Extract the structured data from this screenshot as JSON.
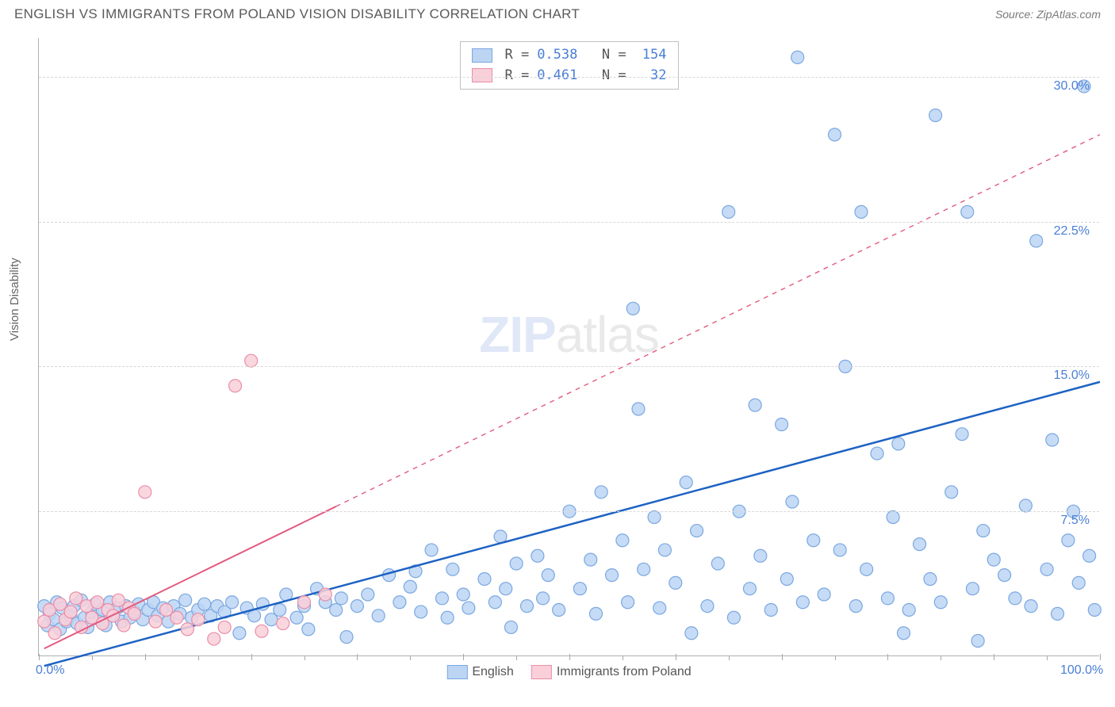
{
  "header": {
    "title": "ENGLISH VS IMMIGRANTS FROM POLAND VISION DISABILITY CORRELATION CHART",
    "source": "Source: ZipAtlas.com"
  },
  "ylabel": "Vision Disability",
  "watermark_zip": "ZIP",
  "watermark_atlas": "atlas",
  "chart": {
    "type": "scatter",
    "xlim": [
      0,
      100
    ],
    "ylim": [
      0,
      32
    ],
    "xticks_major": [
      0,
      10,
      20,
      30,
      40,
      50,
      60,
      70,
      80,
      90,
      100
    ],
    "xticks_minor": [
      5,
      15,
      25,
      35,
      45,
      55,
      65,
      75,
      85,
      95
    ],
    "xlabels": [
      {
        "x": 0,
        "text": "0.0%"
      },
      {
        "x": 100,
        "text": "100.0%"
      }
    ],
    "ygrid": [
      {
        "y": 7.5,
        "label": "7.5%"
      },
      {
        "y": 15.0,
        "label": "15.0%"
      },
      {
        "y": 22.5,
        "label": "22.5%"
      },
      {
        "y": 30.0,
        "label": "30.0%"
      }
    ],
    "marker_radius": 8,
    "marker_stroke_width": 1.2,
    "series": [
      {
        "name": "English",
        "fill": "#bcd5f3",
        "stroke": "#7ba8e0",
        "trend_color": "#1e63c4",
        "trend_width": 2.5,
        "trend_dash_start_x": 100,
        "trend": {
          "x0": 0.5,
          "y0": -0.5,
          "x1": 100,
          "y1": 14.2
        },
        "R": "0.538",
        "N": "154",
        "points": [
          [
            0.5,
            2.6
          ],
          [
            0.8,
            1.6
          ],
          [
            1.0,
            2.2
          ],
          [
            1.4,
            1.9
          ],
          [
            1.7,
            2.8
          ],
          [
            2.0,
            1.4
          ],
          [
            2.2,
            2.5
          ],
          [
            2.6,
            1.8
          ],
          [
            3.0,
            2.1
          ],
          [
            3.3,
            2.6
          ],
          [
            3.6,
            1.7
          ],
          [
            4.0,
            2.9
          ],
          [
            4.3,
            2.0
          ],
          [
            4.6,
            1.5
          ],
          [
            5.0,
            2.3
          ],
          [
            5.3,
            2.7
          ],
          [
            5.7,
            1.9
          ],
          [
            6.0,
            2.4
          ],
          [
            6.3,
            1.6
          ],
          [
            6.7,
            2.8
          ],
          [
            7.0,
            2.1
          ],
          [
            7.4,
            2.5
          ],
          [
            7.8,
            1.8
          ],
          [
            8.2,
            2.6
          ],
          [
            8.6,
            2.0
          ],
          [
            9.0,
            2.3
          ],
          [
            9.4,
            2.7
          ],
          [
            9.8,
            1.9
          ],
          [
            10.3,
            2.4
          ],
          [
            10.8,
            2.8
          ],
          [
            11.2,
            2.1
          ],
          [
            11.7,
            2.5
          ],
          [
            12.2,
            1.8
          ],
          [
            12.7,
            2.6
          ],
          [
            13.3,
            2.2
          ],
          [
            13.8,
            2.9
          ],
          [
            14.4,
            2.0
          ],
          [
            15.0,
            2.4
          ],
          [
            15.6,
            2.7
          ],
          [
            16.2,
            2.1
          ],
          [
            16.8,
            2.6
          ],
          [
            17.5,
            2.3
          ],
          [
            18.2,
            2.8
          ],
          [
            18.9,
            1.2
          ],
          [
            19.6,
            2.5
          ],
          [
            20.3,
            2.1
          ],
          [
            21.1,
            2.7
          ],
          [
            21.9,
            1.9
          ],
          [
            22.7,
            2.4
          ],
          [
            23.3,
            3.2
          ],
          [
            24.3,
            2.0
          ],
          [
            25.0,
            2.6
          ],
          [
            25.4,
            1.4
          ],
          [
            26.2,
            3.5
          ],
          [
            27.0,
            2.8
          ],
          [
            28.0,
            2.4
          ],
          [
            28.5,
            3.0
          ],
          [
            29.0,
            1.0
          ],
          [
            30.0,
            2.6
          ],
          [
            31.0,
            3.2
          ],
          [
            32.0,
            2.1
          ],
          [
            33.0,
            4.2
          ],
          [
            34.0,
            2.8
          ],
          [
            35.0,
            3.6
          ],
          [
            35.5,
            4.4
          ],
          [
            36.0,
            2.3
          ],
          [
            37.0,
            5.5
          ],
          [
            38.0,
            3.0
          ],
          [
            38.5,
            2.0
          ],
          [
            39.0,
            4.5
          ],
          [
            40.0,
            3.2
          ],
          [
            40.5,
            2.5
          ],
          [
            42.0,
            4.0
          ],
          [
            43.0,
            2.8
          ],
          [
            43.5,
            6.2
          ],
          [
            44.0,
            3.5
          ],
          [
            45.0,
            4.8
          ],
          [
            46.0,
            2.6
          ],
          [
            47.0,
            5.2
          ],
          [
            47.5,
            3.0
          ],
          [
            48.0,
            4.2
          ],
          [
            49.0,
            2.4
          ],
          [
            50.0,
            7.5
          ],
          [
            51.0,
            3.5
          ],
          [
            52.0,
            5.0
          ],
          [
            52.5,
            2.2
          ],
          [
            53.0,
            8.5
          ],
          [
            54.0,
            4.2
          ],
          [
            55.0,
            6.0
          ],
          [
            55.5,
            2.8
          ],
          [
            56.0,
            18.0
          ],
          [
            56.5,
            12.8
          ],
          [
            57.0,
            4.5
          ],
          [
            58.0,
            7.2
          ],
          [
            58.5,
            2.5
          ],
          [
            59.0,
            5.5
          ],
          [
            60.0,
            3.8
          ],
          [
            61.0,
            9.0
          ],
          [
            61.5,
            1.2
          ],
          [
            62.0,
            6.5
          ],
          [
            63.0,
            2.6
          ],
          [
            64.0,
            4.8
          ],
          [
            65.0,
            23.0
          ],
          [
            65.5,
            2.0
          ],
          [
            66.0,
            7.5
          ],
          [
            67.0,
            3.5
          ],
          [
            67.5,
            13.0
          ],
          [
            68.0,
            5.2
          ],
          [
            69.0,
            2.4
          ],
          [
            70.0,
            12.0
          ],
          [
            70.5,
            4.0
          ],
          [
            71.0,
            8.0
          ],
          [
            71.5,
            31.0
          ],
          [
            72.0,
            2.8
          ],
          [
            73.0,
            6.0
          ],
          [
            74.0,
            3.2
          ],
          [
            75.0,
            27.0
          ],
          [
            75.5,
            5.5
          ],
          [
            76.0,
            15.0
          ],
          [
            77.0,
            2.6
          ],
          [
            77.5,
            23.0
          ],
          [
            78.0,
            4.5
          ],
          [
            79.0,
            10.5
          ],
          [
            80.0,
            3.0
          ],
          [
            80.5,
            7.2
          ],
          [
            81.0,
            11.0
          ],
          [
            82.0,
            2.4
          ],
          [
            83.0,
            5.8
          ],
          [
            84.0,
            4.0
          ],
          [
            84.5,
            28.0
          ],
          [
            85.0,
            2.8
          ],
          [
            86.0,
            8.5
          ],
          [
            87.0,
            11.5
          ],
          [
            87.5,
            23.0
          ],
          [
            88.0,
            3.5
          ],
          [
            89.0,
            6.5
          ],
          [
            90.0,
            5.0
          ],
          [
            91.0,
            4.2
          ],
          [
            92.0,
            3.0
          ],
          [
            93.0,
            7.8
          ],
          [
            93.5,
            2.6
          ],
          [
            94.0,
            21.5
          ],
          [
            95.0,
            4.5
          ],
          [
            95.5,
            11.2
          ],
          [
            96.0,
            2.2
          ],
          [
            97.0,
            6.0
          ],
          [
            97.5,
            7.5
          ],
          [
            98.0,
            3.8
          ],
          [
            98.5,
            29.5
          ],
          [
            99.0,
            5.2
          ],
          [
            99.5,
            2.4
          ],
          [
            81.5,
            1.2
          ],
          [
            88.5,
            0.8
          ],
          [
            44.5,
            1.5
          ]
        ]
      },
      {
        "name": "Immigrants from Poland",
        "fill": "#f9cfd9",
        "stroke": "#e98fa8",
        "trend_color": "#e25b7e",
        "trend_width": 2,
        "trend_dash_start_x": 28,
        "trend": {
          "x0": 0.5,
          "y0": 0.4,
          "x1": 100,
          "y1": 27.0
        },
        "R": "0.461",
        "N": "32",
        "points": [
          [
            0.5,
            1.8
          ],
          [
            1.0,
            2.4
          ],
          [
            1.5,
            1.2
          ],
          [
            2.0,
            2.7
          ],
          [
            2.5,
            1.9
          ],
          [
            3.0,
            2.3
          ],
          [
            3.5,
            3.0
          ],
          [
            4.0,
            1.5
          ],
          [
            4.5,
            2.6
          ],
          [
            5.0,
            2.0
          ],
          [
            5.5,
            2.8
          ],
          [
            6.0,
            1.7
          ],
          [
            6.5,
            2.4
          ],
          [
            7.0,
            2.1
          ],
          [
            7.5,
            2.9
          ],
          [
            8.0,
            1.6
          ],
          [
            8.5,
            2.5
          ],
          [
            9.0,
            2.2
          ],
          [
            10.0,
            8.5
          ],
          [
            11.0,
            1.8
          ],
          [
            12.0,
            2.4
          ],
          [
            13.0,
            2.0
          ],
          [
            14.0,
            1.4
          ],
          [
            15.0,
            1.9
          ],
          [
            16.5,
            0.9
          ],
          [
            17.5,
            1.5
          ],
          [
            18.5,
            14.0
          ],
          [
            20.0,
            15.3
          ],
          [
            21.0,
            1.3
          ],
          [
            23.0,
            1.7
          ],
          [
            25.0,
            2.8
          ],
          [
            27.0,
            3.2
          ]
        ]
      }
    ]
  },
  "colors": {
    "axis": "#b0b0b0",
    "grid": "#d8d8d8",
    "text_axis": "#4a7fd6",
    "text_body": "#555555"
  },
  "bottom_legend": {
    "items": [
      {
        "label": "English",
        "fill": "#bcd5f3",
        "stroke": "#7ba8e0"
      },
      {
        "label": "Immigrants from Poland",
        "fill": "#f9cfd9",
        "stroke": "#e98fa8"
      }
    ]
  }
}
